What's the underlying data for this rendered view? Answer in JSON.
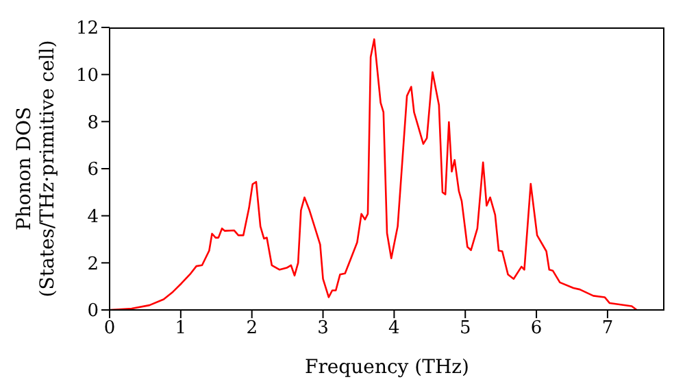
{
  "chart_data": {
    "type": "line",
    "xlabel": "Frequency (THz)",
    "ylabel": "Phonon DOS\n(States/THz·primitive cell)",
    "xlim": [
      0,
      7.8
    ],
    "ylim": [
      0,
      12
    ],
    "xticks": [
      0,
      1,
      2,
      3,
      4,
      5,
      6,
      7
    ],
    "yticks": [
      0,
      2,
      4,
      6,
      8,
      10,
      12
    ],
    "grid": false,
    "legend": false,
    "marker": "none",
    "line_style": "solid",
    "x": [
      0,
      0.31,
      0.56,
      0.76,
      0.88,
      1.01,
      1.14,
      1.22,
      1.3,
      1.4,
      1.44,
      1.49,
      1.53,
      1.58,
      1.62,
      1.75,
      1.81,
      1.88,
      1.96,
      2.01,
      2.06,
      2.12,
      2.17,
      2.21,
      2.28,
      2.39,
      2.49,
      2.55,
      2.6,
      2.65,
      2.69,
      2.74,
      2.81,
      2.9,
      2.96,
      3.0,
      3.08,
      3.13,
      3.18,
      3.24,
      3.31,
      3.48,
      3.54,
      3.59,
      3.63,
      3.67,
      3.72,
      3.81,
      3.85,
      3.9,
      3.96,
      4.05,
      4.18,
      4.24,
      4.28,
      4.41,
      4.46,
      4.54,
      4.63,
      4.68,
      4.72,
      4.77,
      4.81,
      4.85,
      4.91,
      4.95,
      5.03,
      5.08,
      5.17,
      5.25,
      5.3,
      5.35,
      5.42,
      5.47,
      5.52,
      5.6,
      5.68,
      5.79,
      5.83,
      5.92,
      6.01,
      6.14,
      6.18,
      6.23,
      6.33,
      6.52,
      6.61,
      6.8,
      6.96,
      7.03,
      7.34,
      7.41
    ],
    "series": [
      {
        "color": "#ff0000",
        "values": [
          0,
          0.06,
          0.2,
          0.45,
          0.74,
          1.13,
          1.55,
          1.86,
          1.9,
          2.52,
          3.24,
          3.07,
          3.07,
          3.46,
          3.36,
          3.38,
          3.17,
          3.17,
          4.33,
          5.34,
          5.44,
          3.55,
          3.03,
          3.07,
          1.9,
          1.71,
          1.79,
          1.9,
          1.46,
          2.0,
          4.23,
          4.78,
          4.23,
          3.36,
          2.78,
          1.32,
          0.54,
          0.83,
          0.83,
          1.51,
          1.55,
          2.87,
          4.08,
          3.84,
          4.08,
          10.74,
          11.5,
          8.8,
          8.4,
          3.26,
          2.19,
          3.55,
          9.09,
          9.48,
          8.4,
          7.05,
          7.3,
          10.1,
          8.7,
          5.0,
          4.91,
          7.98,
          5.88,
          6.37,
          5.05,
          4.62,
          2.68,
          2.54,
          3.46,
          6.27,
          4.43,
          4.78,
          4.04,
          2.52,
          2.49,
          1.51,
          1.32,
          1.84,
          1.71,
          5.36,
          3.17,
          2.49,
          1.71,
          1.67,
          1.17,
          0.93,
          0.87,
          0.6,
          0.54,
          0.29,
          0.16,
          0
        ]
      }
    ]
  }
}
